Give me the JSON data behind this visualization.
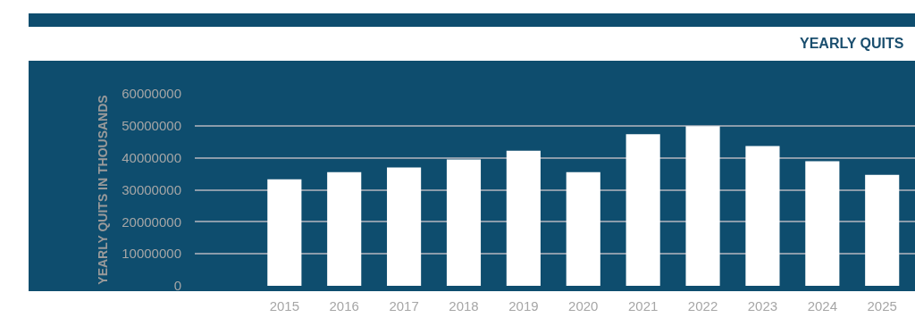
{
  "chart_data": {
    "type": "bar",
    "title": "YEARLY QUITS",
    "ylabel": "YEARLY QUITS IN THOUSANDS",
    "categories": [
      "2015",
      "2016",
      "2017",
      "2018",
      "2019",
      "2020",
      "2021",
      "2022",
      "2023",
      "2024",
      "2025"
    ],
    "values": [
      33300000,
      35500000,
      37000000,
      39500000,
      42200000,
      35500000,
      47400000,
      49900000,
      43700000,
      38900000,
      34700000
    ],
    "color": "#ffffff",
    "ylim": [
      0,
      60000000
    ],
    "yticks": [
      0,
      10000000,
      20000000,
      30000000,
      40000000,
      50000000,
      60000000
    ],
    "grid": "y"
  }
}
